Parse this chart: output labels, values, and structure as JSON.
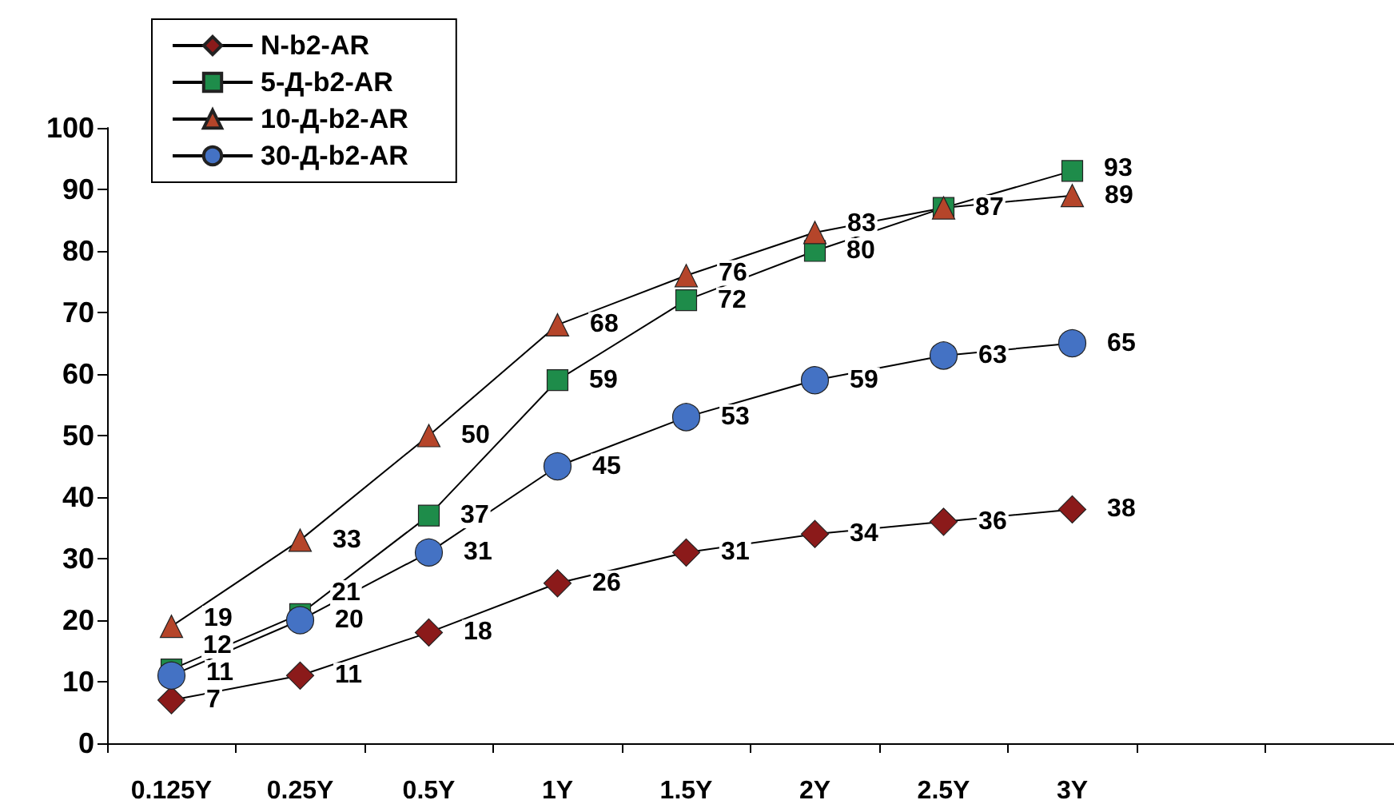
{
  "chart_data": {
    "type": "line",
    "categories": [
      "0.125Y",
      "0.25Y",
      "0.5Y",
      "1Y",
      "1.5Y",
      "2Y",
      "2.5Y",
      "3Y",
      null,
      null
    ],
    "series": [
      {
        "name": "N-b2-AR",
        "color": "#8b1a1a",
        "marker": "diamond",
        "values": [
          7,
          11,
          18,
          26,
          31,
          34,
          36,
          38,
          null,
          null
        ]
      },
      {
        "name": "5-Д-b2-AR",
        "color": "#1e8c4a",
        "marker": "square",
        "values": [
          12,
          21,
          37,
          59,
          72,
          80,
          87,
          93,
          null,
          null
        ]
      },
      {
        "name": "10-Д-b2-AR",
        "color": "#b5452a",
        "marker": "triangle",
        "values": [
          19,
          33,
          50,
          68,
          76,
          83,
          87,
          89,
          null,
          null
        ],
        "value_labels": [
          "19",
          "33",
          "50",
          "68",
          "76",
          "83",
          null,
          "89",
          null,
          null
        ]
      },
      {
        "name": "30-Д-b2-AR",
        "color": "#4472c4",
        "marker": "circle",
        "values": [
          11,
          20,
          31,
          45,
          53,
          59,
          63,
          65,
          null,
          null
        ]
      }
    ],
    "data_labels": true,
    "ylim": [
      0,
      100
    ],
    "yticks": [
      0,
      10,
      20,
      30,
      40,
      50,
      60,
      70,
      80,
      90,
      100
    ],
    "grid": false,
    "legend": "top left"
  }
}
